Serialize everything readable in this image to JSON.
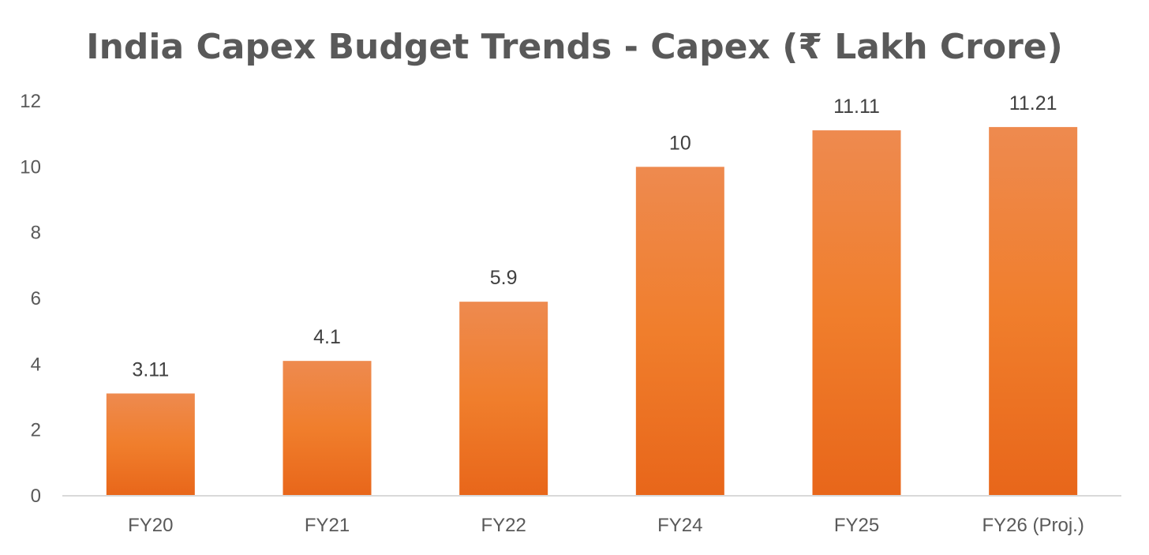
{
  "chart_data": {
    "type": "bar",
    "title": "India Capex Budget Trends - Capex (₹ Lakh Crore)",
    "categories": [
      "FY20",
      "FY21",
      "FY22",
      "FY24",
      "FY25",
      "FY26 (Proj.)"
    ],
    "values": [
      3.11,
      4.1,
      5.9,
      10,
      11.11,
      11.21
    ],
    "value_labels": [
      "3.11",
      "4.1",
      "5.9",
      "10",
      "11.11",
      "11.21"
    ],
    "series": [
      {
        "name": "Capex",
        "values": [
          3.11,
          4.1,
          5.9,
          10,
          11.11,
          11.21
        ]
      }
    ],
    "xlabel": "",
    "ylabel": "",
    "ylim": [
      0,
      12
    ],
    "yticks": [
      "0",
      "2",
      "4",
      "6",
      "8",
      "10",
      "12"
    ],
    "grid": false,
    "legend": "none",
    "colors": {
      "bar_top": "#EE8A4F",
      "bar_mid": "#F07E2C",
      "bar_bottom": "#E8661A",
      "axis": "#d9d9d9"
    }
  }
}
